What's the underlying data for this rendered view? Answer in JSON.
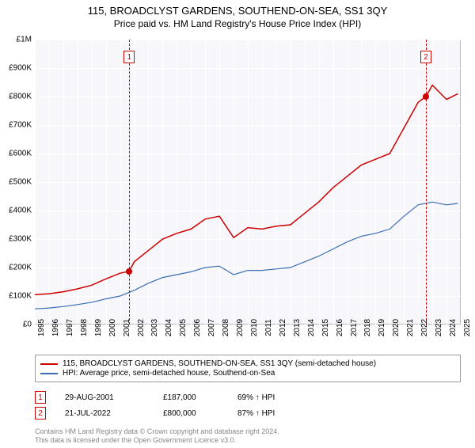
{
  "title": "115, BROADCLYST GARDENS, SOUTHEND-ON-SEA, SS1 3QY",
  "subtitle": "Price paid vs. HM Land Registry's House Price Index (HPI)",
  "chart": {
    "type": "line",
    "background_color": "#f6f6fb",
    "grid_color": "#ffffff",
    "border_color": "#b8b8be",
    "x": {
      "min": 1995,
      "max": 2025,
      "ticks": [
        1995,
        1996,
        1997,
        1998,
        1999,
        2000,
        2001,
        2002,
        2003,
        2004,
        2005,
        2006,
        2007,
        2008,
        2009,
        2010,
        2011,
        2012,
        2013,
        2014,
        2015,
        2016,
        2017,
        2018,
        2019,
        2020,
        2021,
        2022,
        2023,
        2024,
        2025
      ],
      "label_fontsize": 10
    },
    "y": {
      "min": 0,
      "max": 1000000,
      "ticks": [
        0,
        100000,
        200000,
        300000,
        400000,
        500000,
        600000,
        700000,
        800000,
        900000,
        1000000
      ],
      "tick_labels": [
        "£0",
        "£100K",
        "£200K",
        "£300K",
        "£400K",
        "£500K",
        "£600K",
        "£700K",
        "£800K",
        "£900K",
        "£1M"
      ],
      "label_fontsize": 10
    },
    "series": [
      {
        "id": "property",
        "label": "115, BROADCLYST GARDENS, SOUTHEND-ON-SEA, SS1 3QY (semi-detached house)",
        "color": "#cc0000",
        "line_width": 1.5,
        "x": [
          1995,
          1996,
          1997,
          1998,
          1999,
          2000,
          2001,
          2001.65,
          2002,
          2003,
          2004,
          2005,
          2006,
          2007,
          2008,
          2009,
          2010,
          2011,
          2012,
          2013,
          2014,
          2015,
          2016,
          2017,
          2018,
          2019,
          2020,
          2021,
          2022,
          2022.55,
          2023,
          2024,
          2024.8
        ],
        "y": [
          105000,
          108000,
          115000,
          125000,
          138000,
          160000,
          180000,
          187000,
          220000,
          260000,
          300000,
          320000,
          335000,
          370000,
          380000,
          305000,
          340000,
          335000,
          345000,
          350000,
          390000,
          430000,
          480000,
          520000,
          560000,
          580000,
          600000,
          690000,
          780000,
          800000,
          840000,
          790000,
          810000
        ]
      },
      {
        "id": "hpi",
        "label": "HPI: Average price, semi-detached house, Southend-on-Sea",
        "color": "#3b6db3",
        "line_width": 1.2,
        "x": [
          1995,
          1996,
          1997,
          1998,
          1999,
          2000,
          2001,
          2002,
          2003,
          2004,
          2005,
          2006,
          2007,
          2008,
          2009,
          2010,
          2011,
          2012,
          2013,
          2014,
          2015,
          2016,
          2017,
          2018,
          2019,
          2020,
          2021,
          2022,
          2023,
          2024,
          2024.8
        ],
        "y": [
          55000,
          58000,
          63000,
          70000,
          78000,
          90000,
          100000,
          120000,
          145000,
          165000,
          175000,
          185000,
          200000,
          205000,
          175000,
          190000,
          190000,
          195000,
          200000,
          220000,
          240000,
          265000,
          290000,
          310000,
          320000,
          335000,
          380000,
          420000,
          430000,
          420000,
          425000
        ]
      }
    ],
    "markers": [
      {
        "x": 2001.65,
        "y": 187000,
        "color": "#cc0000",
        "size": 8
      },
      {
        "x": 2022.55,
        "y": 800000,
        "color": "#cc0000",
        "size": 8
      }
    ],
    "event_lines": [
      {
        "x": 2001.65,
        "label": "1",
        "label_y_offset": 14,
        "color": "#cc0000"
      },
      {
        "x": 2022.55,
        "label": "2",
        "label_y_offset": 14,
        "color": "#cc0000"
      }
    ]
  },
  "legend": {
    "border_color": "#9a9a9a",
    "items": [
      {
        "color": "#cc0000",
        "bind": "chart.series.0.label"
      },
      {
        "color": "#3b6db3",
        "bind": "chart.series.1.label"
      }
    ]
  },
  "events": [
    {
      "num": "1",
      "date": "29-AUG-2001",
      "price": "£187,000",
      "hpi": "69% ↑ HPI"
    },
    {
      "num": "2",
      "date": "21-JUL-2022",
      "price": "£800,000",
      "hpi": "87% ↑ HPI"
    }
  ],
  "footer": {
    "line1": "Contains HM Land Registry data © Crown copyright and database right 2024.",
    "line2": "This data is licensed under the Open Government Licence v3.0."
  }
}
